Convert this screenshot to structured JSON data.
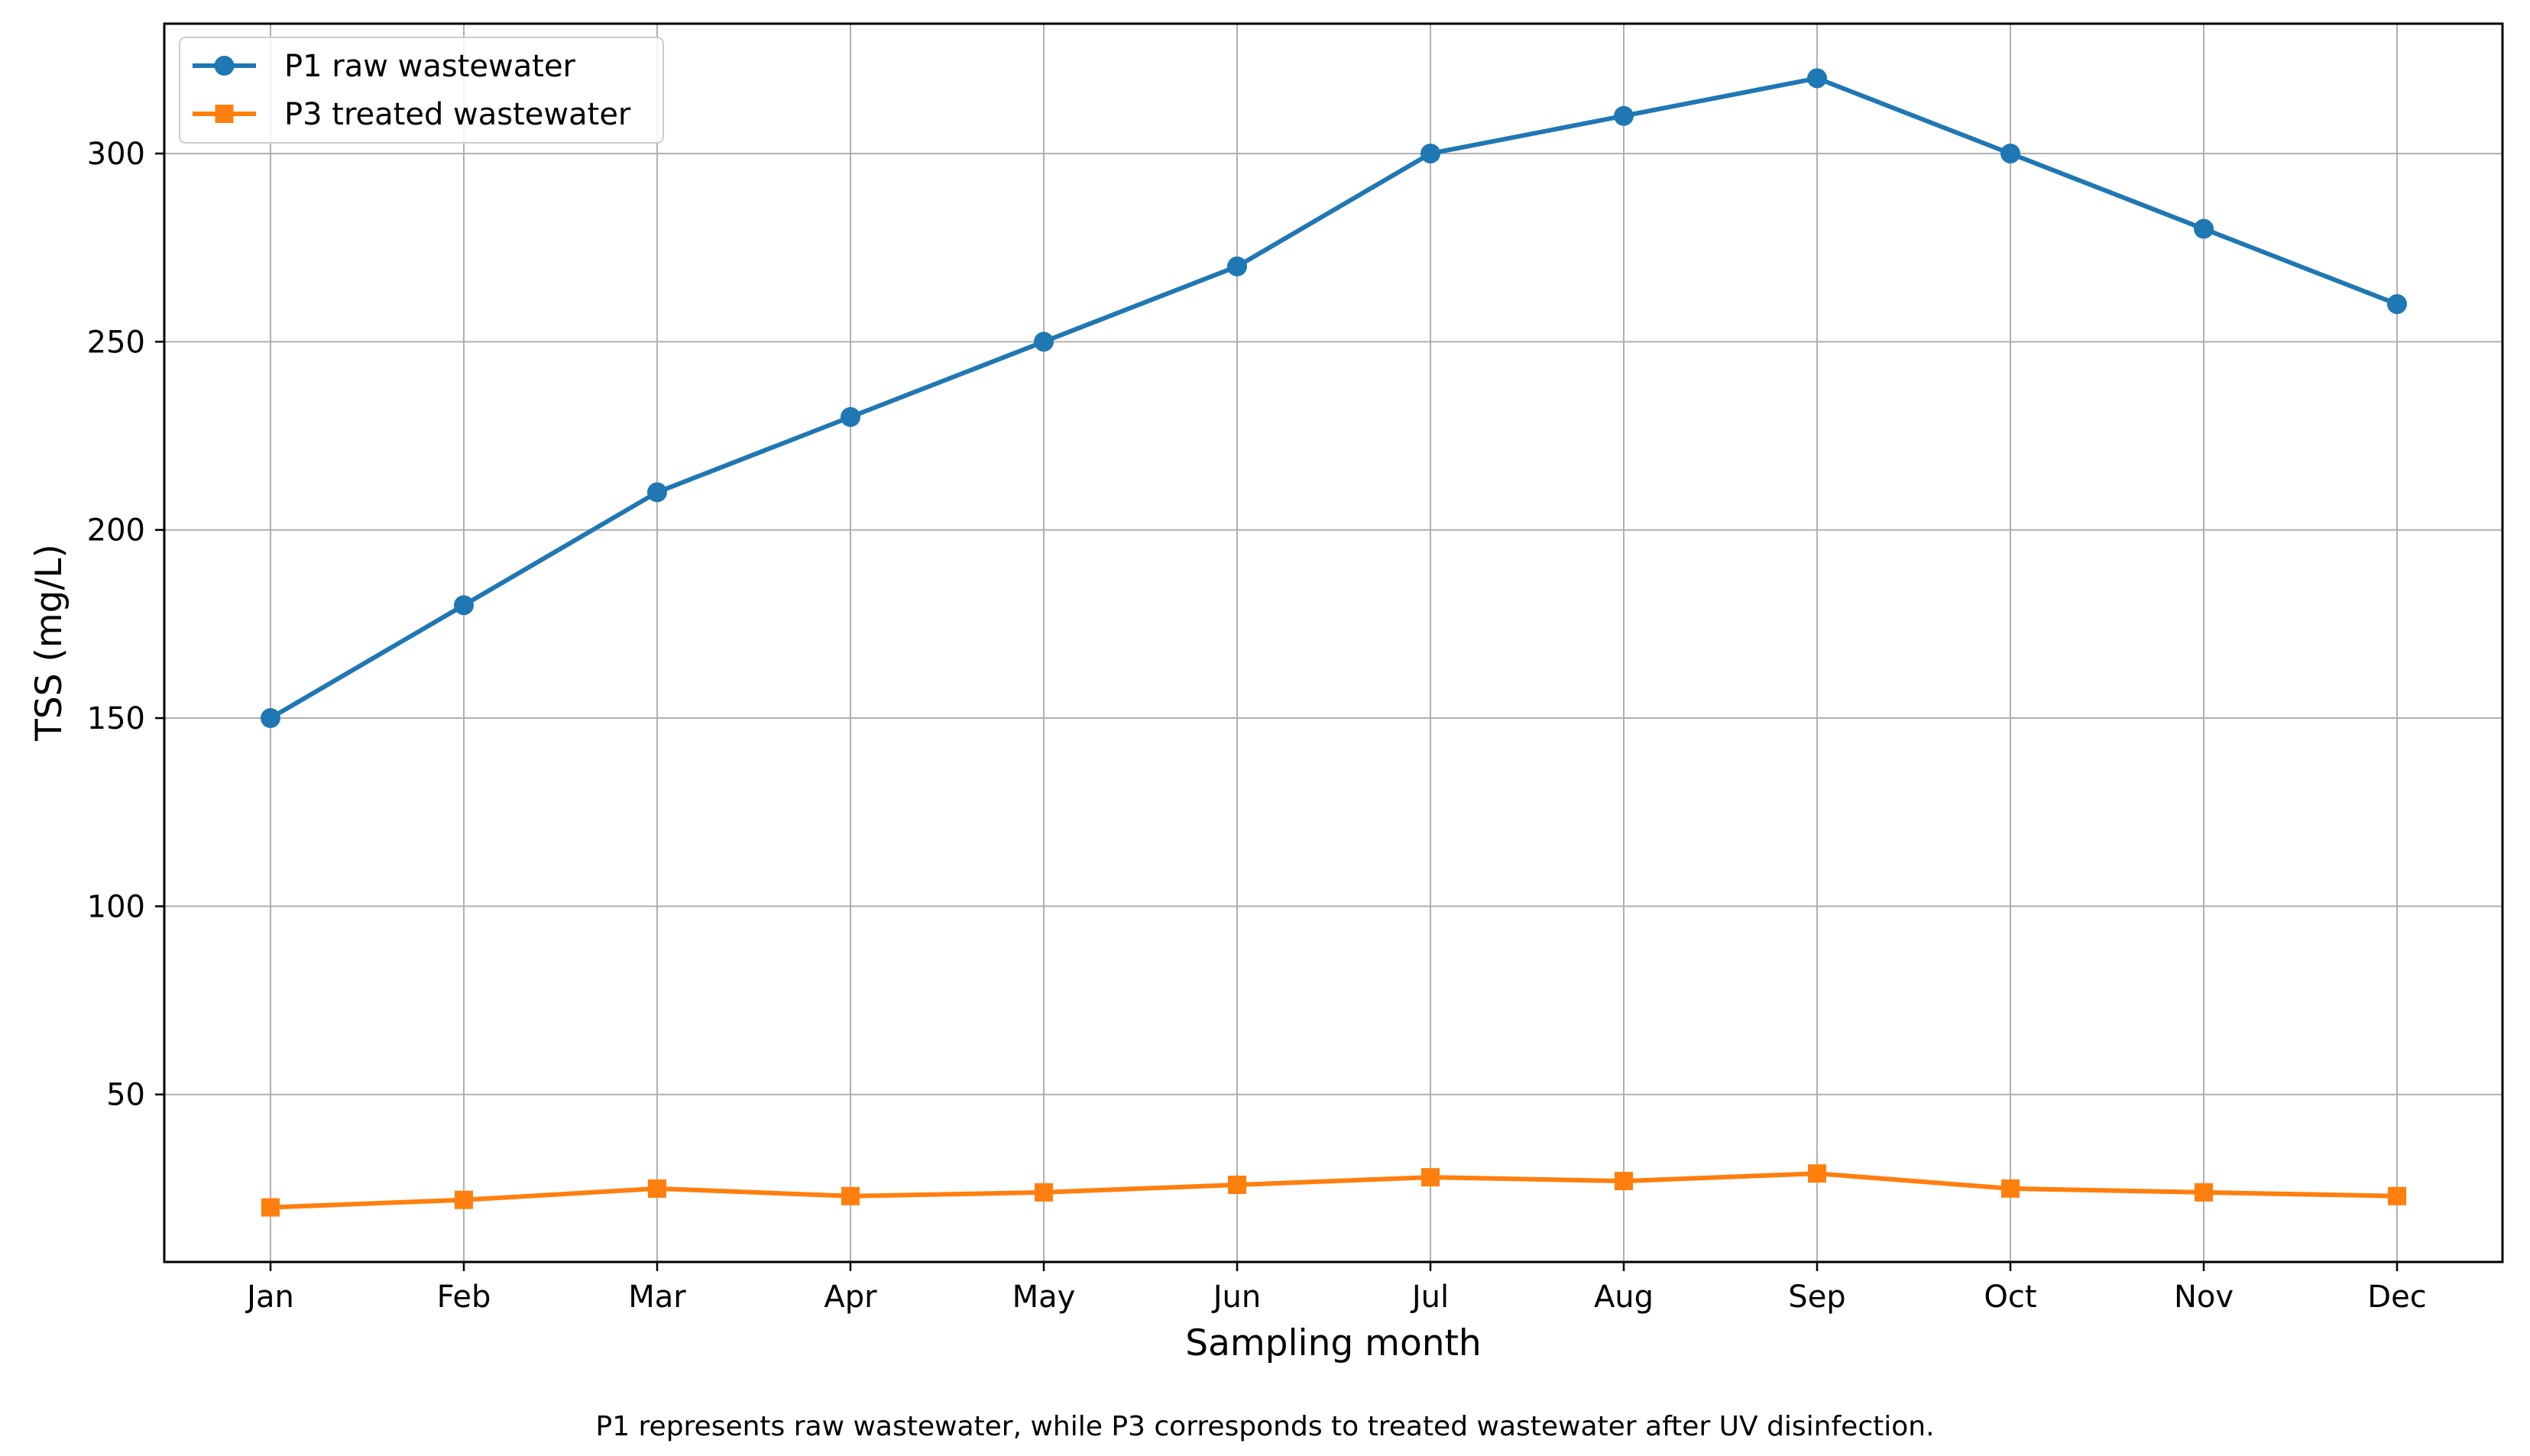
{
  "chart_data": {
    "type": "line",
    "title": "",
    "xlabel": "Sampling month",
    "ylabel": "TSS (mg/L)",
    "categories": [
      "Jan",
      "Feb",
      "Mar",
      "Apr",
      "May",
      "Jun",
      "Jul",
      "Aug",
      "Sep",
      "Oct",
      "Nov",
      "Dec"
    ],
    "series": [
      {
        "name": "P1 raw wastewater",
        "values": [
          150,
          180,
          210,
          230,
          250,
          270,
          300,
          310,
          320,
          300,
          280,
          260
        ],
        "color": "#1f77b4",
        "marker": "circle"
      },
      {
        "name": "P3 treated wastewater",
        "values": [
          20,
          22,
          25,
          23,
          24,
          26,
          28,
          27,
          29,
          25,
          24,
          23
        ],
        "color": "#ff7f0e",
        "marker": "square"
      }
    ],
    "yticks": [
      50,
      100,
      150,
      200,
      250,
      300
    ],
    "ylim": [
      5.5,
      334.5
    ],
    "grid": true,
    "legend_position": "top-left"
  },
  "caption": "P1 represents raw wastewater, while P3 corresponds to treated wastewater after UV disinfection."
}
